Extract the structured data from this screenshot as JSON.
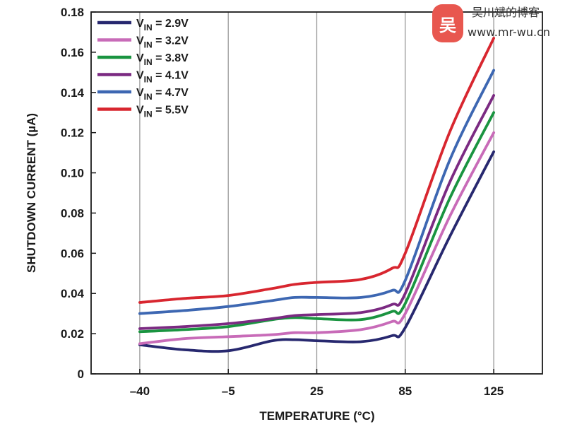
{
  "chart_data": {
    "type": "line",
    "xlabel": "TEMPERATURE (°C)",
    "ylabel": "SHUTDOWN CURRENT (µA)",
    "x_tick_labels": [
      "–40",
      "–5",
      "25",
      "85",
      "125"
    ],
    "x_tick_positions": [
      0,
      1,
      2,
      3,
      4
    ],
    "xlim": [
      -0.55,
      4.55
    ],
    "ylim": [
      0,
      0.18
    ],
    "y_ticks": [
      0,
      0.02,
      0.04,
      0.06,
      0.08,
      0.1,
      0.12,
      0.14,
      0.16,
      0.18
    ],
    "y_tick_labels": [
      "0",
      "0.02",
      "0.04",
      "0.06",
      "0.08",
      "0.10",
      "0.12",
      "0.14",
      "0.16",
      "0.18"
    ],
    "grid": "vertical-at-ticks",
    "legend_position": "top-left",
    "series": [
      {
        "name": "VIN = 2.9V",
        "legend_main": "V",
        "legend_sub": "IN",
        "legend_rest": " = 2.9V",
        "color": "#27286f",
        "x": [
          0,
          0.5,
          1,
          1.5,
          1.75,
          2,
          2.5,
          2.85,
          3,
          3.5,
          4
        ],
        "y": [
          0.0145,
          0.012,
          0.0115,
          0.0165,
          0.017,
          0.0165,
          0.016,
          0.019,
          0.023,
          0.068,
          0.1105
        ]
      },
      {
        "name": "VIN = 3.2V",
        "legend_main": "V",
        "legend_sub": "IN",
        "legend_rest": " = 3.2V",
        "color": "#c86bb8",
        "x": [
          0,
          0.5,
          1,
          1.5,
          1.75,
          2,
          2.5,
          2.85,
          3,
          3.5,
          4
        ],
        "y": [
          0.015,
          0.0175,
          0.0185,
          0.0195,
          0.0205,
          0.0205,
          0.022,
          0.026,
          0.03,
          0.078,
          0.12
        ]
      },
      {
        "name": "VIN = 3.8V",
        "legend_main": "V",
        "legend_sub": "IN",
        "legend_rest": " = 3.8V",
        "color": "#1a9440",
        "x": [
          0,
          0.5,
          1,
          1.5,
          1.75,
          2,
          2.5,
          2.85,
          3,
          3.5,
          4
        ],
        "y": [
          0.021,
          0.022,
          0.0235,
          0.027,
          0.028,
          0.0275,
          0.027,
          0.031,
          0.035,
          0.087,
          0.13
        ]
      },
      {
        "name": "VIN = 4.1V",
        "legend_main": "V",
        "legend_sub": "IN",
        "legend_rest": " = 4.1V",
        "color": "#7b2a82",
        "x": [
          0,
          0.5,
          1,
          1.5,
          1.75,
          2,
          2.5,
          2.85,
          3,
          3.5,
          4
        ],
        "y": [
          0.0225,
          0.0235,
          0.025,
          0.0275,
          0.029,
          0.0295,
          0.0305,
          0.0345,
          0.04,
          0.095,
          0.1385
        ]
      },
      {
        "name": "VIN = 4.7V",
        "legend_main": "V",
        "legend_sub": "IN",
        "legend_rest": " = 4.7V",
        "color": "#3d67b2",
        "x": [
          0,
          0.5,
          1,
          1.5,
          1.75,
          2,
          2.5,
          2.85,
          3,
          3.5,
          4
        ],
        "y": [
          0.03,
          0.0315,
          0.0335,
          0.0365,
          0.038,
          0.038,
          0.038,
          0.0415,
          0.0465,
          0.106,
          0.151
        ]
      },
      {
        "name": "VIN = 5.5V",
        "legend_main": "V",
        "legend_sub": "IN",
        "legend_rest": " = 5.5V",
        "color": "#d8262f",
        "x": [
          0,
          0.5,
          1,
          1.5,
          1.75,
          2,
          2.5,
          2.85,
          3,
          3.5,
          4
        ],
        "y": [
          0.0355,
          0.0375,
          0.039,
          0.0425,
          0.0445,
          0.0455,
          0.047,
          0.0525,
          0.06,
          0.12,
          0.167
        ]
      }
    ]
  },
  "watermark": {
    "logo_char": "吴",
    "name": "吴川斌的博客",
    "url": "www.mr-wu.cn",
    "logo_color": "#e8574f"
  }
}
